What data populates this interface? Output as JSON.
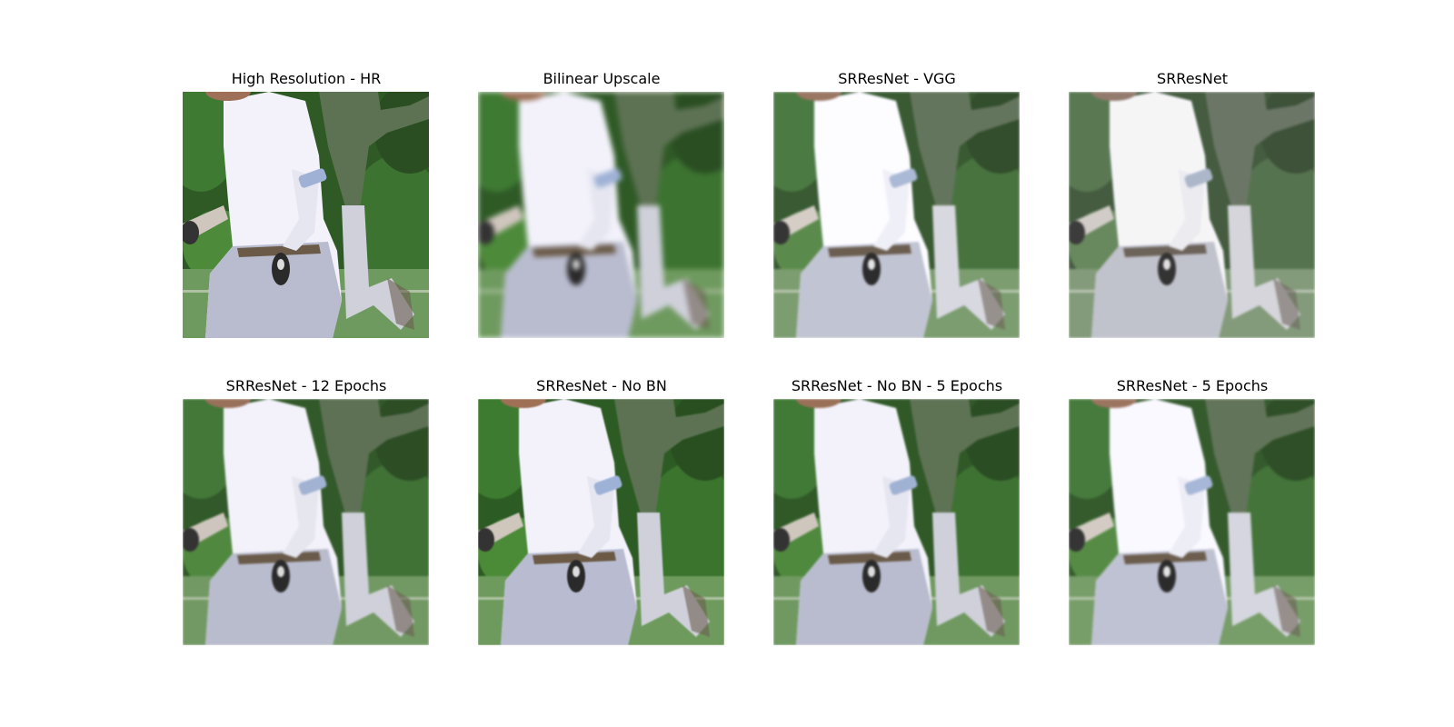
{
  "panels": [
    {
      "title": "High Resolution - HR",
      "variant": "hr"
    },
    {
      "title": "Bilinear Upscale",
      "variant": "bil"
    },
    {
      "title": "SRResNet - VGG",
      "variant": "vgg"
    },
    {
      "title": "SRResNet",
      "variant": "srr"
    },
    {
      "title": "SRResNet - 12 Epochs",
      "variant": "e12"
    },
    {
      "title": "SRResNet - No BN",
      "variant": "nobn"
    },
    {
      "title": "SRResNet - No BN - 5 Epochs",
      "variant": "nb5"
    },
    {
      "title": "SRResNet - 5 Epochs",
      "variant": "e5"
    }
  ]
}
